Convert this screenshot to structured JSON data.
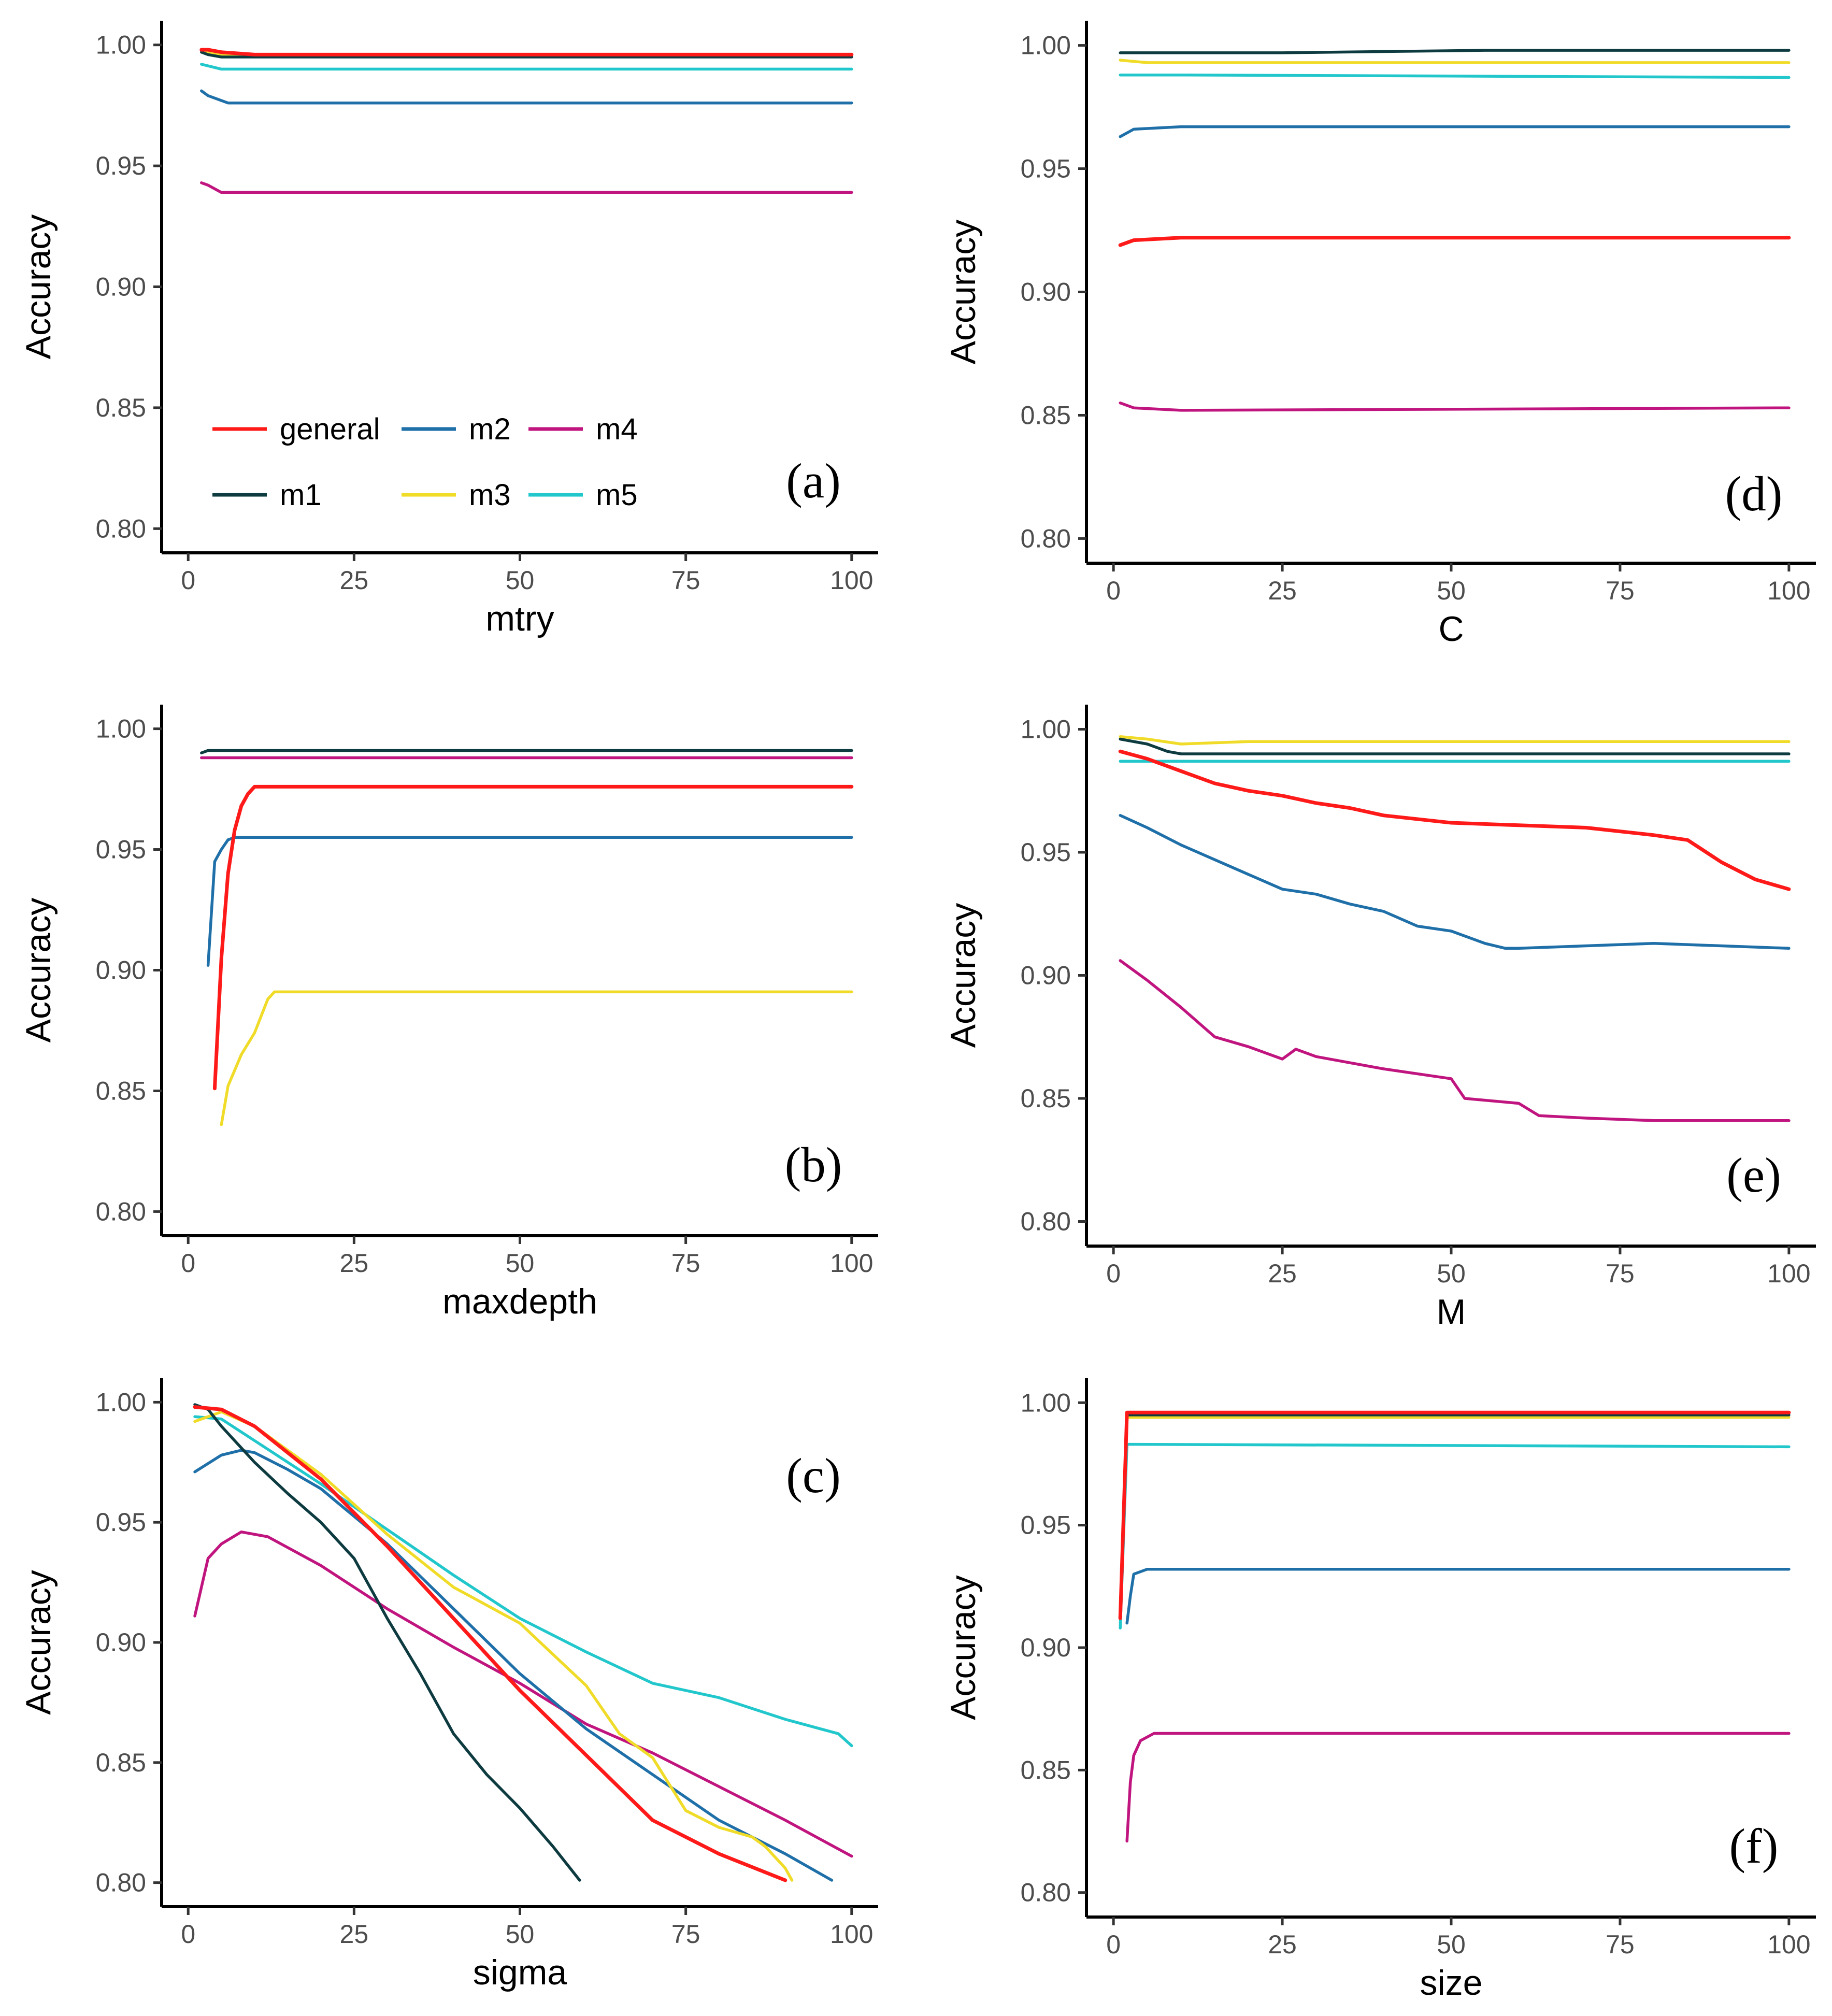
{
  "figure": {
    "colors": {
      "general": "#ff1a1a",
      "m1": "#0d3b40",
      "m2": "#1f6fa8",
      "m3": "#f0dc28",
      "m4": "#c0157f",
      "m5": "#22c7cc"
    },
    "legend": {
      "entries": [
        {
          "key": "general",
          "label": "general"
        },
        {
          "key": "m2",
          "label": "m2"
        },
        {
          "key": "m4",
          "label": "m4"
        },
        {
          "key": "m1",
          "label": "m1"
        },
        {
          "key": "m3",
          "label": "m3"
        },
        {
          "key": "m5",
          "label": "m5"
        }
      ]
    }
  },
  "chart_data": [
    {
      "id": "a",
      "panel_label": "(a)",
      "type": "line",
      "xlabel": "mtry",
      "ylabel": "Accuracy",
      "xlim": [
        0,
        100
      ],
      "ylim": [
        0.8,
        1.0
      ],
      "xticks": [
        "0",
        "25",
        "50",
        "75",
        "100"
      ],
      "yticks": [
        "0.80",
        "0.85",
        "0.90",
        "0.95",
        "1.00"
      ],
      "series": [
        {
          "name": "general",
          "x": [
            2,
            3,
            5,
            10,
            100
          ],
          "y": [
            0.998,
            0.998,
            0.997,
            0.996,
            0.996
          ]
        },
        {
          "name": "m1",
          "x": [
            2,
            3,
            5,
            10,
            100
          ],
          "y": [
            0.997,
            0.996,
            0.995,
            0.995,
            0.995
          ]
        },
        {
          "name": "m2",
          "x": [
            2,
            3,
            5,
            6,
            10,
            100
          ],
          "y": [
            0.981,
            0.979,
            0.977,
            0.976,
            0.976,
            0.976
          ]
        },
        {
          "name": "m3",
          "x": [
            2,
            5,
            10,
            100
          ],
          "y": [
            0.997,
            0.996,
            0.996,
            0.996
          ]
        },
        {
          "name": "m4",
          "x": [
            2,
            3,
            5,
            10,
            100
          ],
          "y": [
            0.943,
            0.942,
            0.939,
            0.939,
            0.939
          ]
        },
        {
          "name": "m5",
          "x": [
            2,
            5,
            10,
            100
          ],
          "y": [
            0.992,
            0.99,
            0.99,
            0.99
          ]
        }
      ]
    },
    {
      "id": "d",
      "panel_label": "(d)",
      "type": "line",
      "xlabel": "C",
      "ylabel": "Accuracy",
      "xlim": [
        0,
        100
      ],
      "ylim": [
        0.8,
        1.0
      ],
      "xticks": [
        "0",
        "25",
        "50",
        "75",
        "100"
      ],
      "yticks": [
        "0.80",
        "0.85",
        "0.90",
        "0.95",
        "1.00"
      ],
      "series": [
        {
          "name": "general",
          "x": [
            1,
            3,
            10,
            100
          ],
          "y": [
            0.919,
            0.921,
            0.922,
            0.922
          ]
        },
        {
          "name": "m1",
          "x": [
            1,
            25,
            55,
            100
          ],
          "y": [
            0.997,
            0.997,
            0.998,
            0.998
          ]
        },
        {
          "name": "m2",
          "x": [
            1,
            3,
            10,
            50,
            100
          ],
          "y": [
            0.963,
            0.966,
            0.967,
            0.967,
            0.967
          ]
        },
        {
          "name": "m3",
          "x": [
            1,
            5,
            100
          ],
          "y": [
            0.994,
            0.993,
            0.993
          ]
        },
        {
          "name": "m4",
          "x": [
            1,
            3,
            10,
            100
          ],
          "y": [
            0.855,
            0.853,
            0.852,
            0.853
          ]
        },
        {
          "name": "m5",
          "x": [
            1,
            10,
            100
          ],
          "y": [
            0.988,
            0.988,
            0.987
          ]
        }
      ]
    },
    {
      "id": "b",
      "panel_label": "(b)",
      "type": "line",
      "xlabel": "maxdepth",
      "ylabel": "Accuracy",
      "xlim": [
        0,
        100
      ],
      "ylim": [
        0.8,
        1.0
      ],
      "xticks": [
        "0",
        "25",
        "50",
        "75",
        "100"
      ],
      "yticks": [
        "0.80",
        "0.85",
        "0.90",
        "0.95",
        "1.00"
      ],
      "series": [
        {
          "name": "general",
          "x": [
            4,
            5,
            6,
            7,
            8,
            9,
            10,
            11,
            100
          ],
          "y": [
            0.851,
            0.905,
            0.94,
            0.958,
            0.968,
            0.973,
            0.976,
            0.976,
            0.976
          ]
        },
        {
          "name": "m1",
          "x": [
            2,
            3,
            100
          ],
          "y": [
            0.99,
            0.991,
            0.991
          ]
        },
        {
          "name": "m2",
          "x": [
            3,
            4,
            5,
            6,
            7,
            100
          ],
          "y": [
            0.902,
            0.945,
            0.95,
            0.954,
            0.955,
            0.955
          ]
        },
        {
          "name": "m3",
          "x": [
            5,
            6,
            8,
            10,
            12,
            13,
            100
          ],
          "y": [
            0.836,
            0.852,
            0.865,
            0.874,
            0.888,
            0.891,
            0.891
          ]
        },
        {
          "name": "m4",
          "x": [
            2,
            100
          ],
          "y": [
            0.988,
            0.988
          ]
        }
      ]
    },
    {
      "id": "e",
      "panel_label": "(e)",
      "type": "line",
      "xlabel": "M",
      "ylabel": "Accuracy",
      "xlim": [
        0,
        100
      ],
      "ylim": [
        0.8,
        1.0
      ],
      "xticks": [
        "0",
        "25",
        "50",
        "75",
        "100"
      ],
      "yticks": [
        "0.80",
        "0.85",
        "0.90",
        "0.95",
        "1.00"
      ],
      "series": [
        {
          "name": "general",
          "x": [
            1,
            5,
            10,
            15,
            20,
            25,
            30,
            35,
            40,
            50,
            60,
            70,
            80,
            85,
            90,
            95,
            100
          ],
          "y": [
            0.991,
            0.988,
            0.983,
            0.978,
            0.975,
            0.973,
            0.97,
            0.968,
            0.965,
            0.962,
            0.961,
            0.96,
            0.957,
            0.955,
            0.946,
            0.939,
            0.935
          ]
        },
        {
          "name": "m1",
          "x": [
            1,
            5,
            8,
            10,
            100
          ],
          "y": [
            0.996,
            0.994,
            0.991,
            0.99,
            0.99
          ]
        },
        {
          "name": "m2",
          "x": [
            1,
            5,
            10,
            15,
            20,
            25,
            30,
            35,
            40,
            45,
            50,
            55,
            58,
            60,
            70,
            80,
            100
          ],
          "y": [
            0.965,
            0.96,
            0.953,
            0.947,
            0.941,
            0.935,
            0.933,
            0.929,
            0.926,
            0.92,
            0.918,
            0.913,
            0.911,
            0.911,
            0.912,
            0.913,
            0.911
          ]
        },
        {
          "name": "m3",
          "x": [
            1,
            5,
            10,
            20,
            100
          ],
          "y": [
            0.997,
            0.996,
            0.994,
            0.995,
            0.995
          ]
        },
        {
          "name": "m4",
          "x": [
            1,
            5,
            10,
            15,
            20,
            25,
            27,
            30,
            40,
            50,
            52,
            60,
            63,
            70,
            80,
            100
          ],
          "y": [
            0.906,
            0.898,
            0.887,
            0.875,
            0.871,
            0.866,
            0.87,
            0.867,
            0.862,
            0.858,
            0.85,
            0.848,
            0.843,
            0.842,
            0.841,
            0.841
          ]
        },
        {
          "name": "m5",
          "x": [
            1,
            100
          ],
          "y": [
            0.987,
            0.987
          ]
        }
      ]
    },
    {
      "id": "c",
      "panel_label": "(c)",
      "type": "line",
      "xlabel": "sigma",
      "ylabel": "Accuracy",
      "xlim": [
        0,
        100
      ],
      "ylim": [
        0.8,
        1.0
      ],
      "xticks": [
        "0",
        "25",
        "50",
        "75",
        "100"
      ],
      "yticks": [
        "0.80",
        "0.85",
        "0.90",
        "0.95",
        "1.00"
      ],
      "series": [
        {
          "name": "general",
          "x": [
            1,
            5,
            10,
            20,
            30,
            40,
            50,
            60,
            70,
            80,
            90
          ],
          "y": [
            0.998,
            0.997,
            0.99,
            0.968,
            0.94,
            0.91,
            0.88,
            0.853,
            0.826,
            0.812,
            0.801
          ]
        },
        {
          "name": "m1",
          "x": [
            1,
            3,
            5,
            10,
            15,
            20,
            25,
            30,
            35,
            40,
            45,
            50,
            55,
            57,
            59
          ],
          "y": [
            0.999,
            0.997,
            0.99,
            0.975,
            0.962,
            0.95,
            0.935,
            0.91,
            0.887,
            0.862,
            0.845,
            0.831,
            0.815,
            0.808,
            0.801
          ]
        },
        {
          "name": "m2",
          "x": [
            1,
            5,
            8,
            10,
            15,
            20,
            30,
            40,
            50,
            60,
            70,
            80,
            90,
            97
          ],
          "y": [
            0.971,
            0.978,
            0.98,
            0.979,
            0.972,
            0.964,
            0.941,
            0.914,
            0.887,
            0.864,
            0.845,
            0.826,
            0.812,
            0.801
          ]
        },
        {
          "name": "m3",
          "x": [
            1,
            5,
            10,
            20,
            30,
            40,
            50,
            55,
            60,
            65,
            70,
            75,
            80,
            85,
            87,
            90,
            91
          ],
          "y": [
            0.992,
            0.996,
            0.99,
            0.97,
            0.945,
            0.923,
            0.908,
            0.895,
            0.882,
            0.862,
            0.852,
            0.83,
            0.823,
            0.819,
            0.815,
            0.806,
            0.801
          ]
        },
        {
          "name": "m4",
          "x": [
            1,
            3,
            5,
            8,
            12,
            20,
            30,
            40,
            50,
            60,
            70,
            80,
            90,
            100
          ],
          "y": [
            0.911,
            0.935,
            0.941,
            0.946,
            0.944,
            0.932,
            0.914,
            0.898,
            0.883,
            0.866,
            0.854,
            0.84,
            0.826,
            0.811
          ]
        },
        {
          "name": "m5",
          "x": [
            1,
            5,
            10,
            20,
            30,
            40,
            50,
            60,
            70,
            80,
            90,
            98,
            100
          ],
          "y": [
            0.994,
            0.993,
            0.984,
            0.966,
            0.947,
            0.928,
            0.91,
            0.896,
            0.883,
            0.877,
            0.868,
            0.862,
            0.857
          ]
        }
      ]
    },
    {
      "id": "f",
      "panel_label": "(f)",
      "type": "line",
      "xlabel": "size",
      "ylabel": "Accuracy",
      "xlim": [
        0,
        100
      ],
      "ylim": [
        0.8,
        1.0
      ],
      "xticks": [
        "0",
        "25",
        "50",
        "75",
        "100"
      ],
      "yticks": [
        "0.80",
        "0.85",
        "0.90",
        "0.95",
        "1.00"
      ],
      "series": [
        {
          "name": "general",
          "x": [
            1,
            2,
            3,
            100
          ],
          "y": [
            0.912,
            0.996,
            0.996,
            0.996
          ]
        },
        {
          "name": "m1",
          "x": [
            2,
            100
          ],
          "y": [
            0.995,
            0.995
          ]
        },
        {
          "name": "m2",
          "x": [
            2,
            2.5,
            3,
            5,
            10,
            100
          ],
          "y": [
            0.91,
            0.921,
            0.93,
            0.932,
            0.932,
            0.932
          ]
        },
        {
          "name": "m3",
          "x": [
            2,
            100
          ],
          "y": [
            0.994,
            0.994
          ]
        },
        {
          "name": "m4",
          "x": [
            2,
            2.5,
            3,
            4,
            6,
            10,
            100
          ],
          "y": [
            0.821,
            0.845,
            0.856,
            0.862,
            0.865,
            0.865,
            0.865
          ]
        },
        {
          "name": "m5",
          "x": [
            1,
            2,
            3,
            100
          ],
          "y": [
            0.908,
            0.983,
            0.983,
            0.982
          ]
        }
      ]
    }
  ]
}
